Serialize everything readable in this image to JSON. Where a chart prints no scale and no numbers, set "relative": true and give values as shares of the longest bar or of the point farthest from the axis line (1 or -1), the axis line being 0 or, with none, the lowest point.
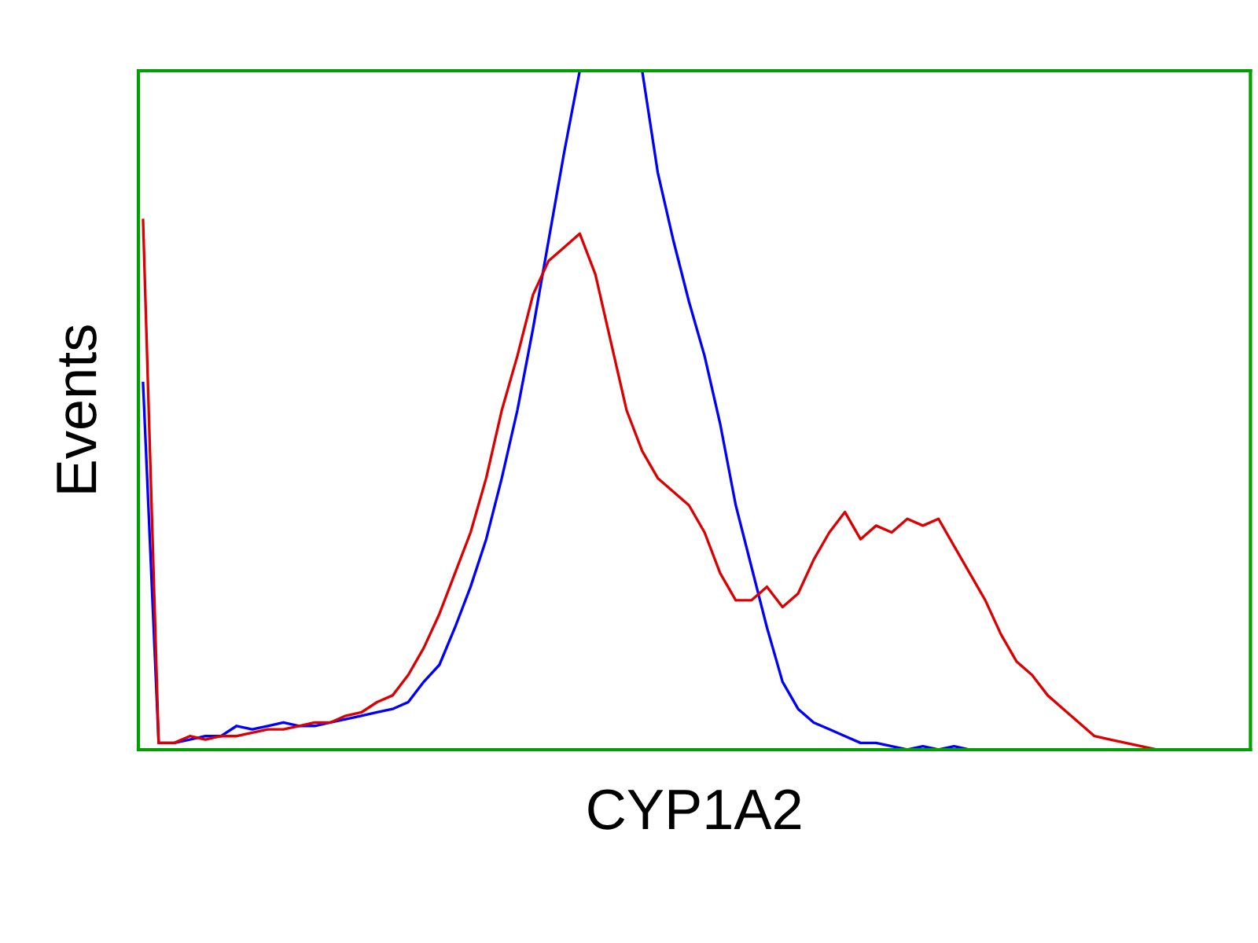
{
  "chart_data": {
    "type": "line",
    "xlabel": "CYP1A2",
    "ylabel": "Events",
    "relative": true,
    "grid": false,
    "legend": false,
    "categories": [
      null,
      null,
      null,
      null,
      null,
      null,
      null,
      null,
      null,
      null,
      null,
      null,
      null,
      null,
      null,
      null,
      null,
      null,
      null,
      null,
      null,
      null,
      null,
      null,
      null,
      null,
      null,
      null,
      null,
      null,
      null,
      null,
      null,
      null,
      null,
      null,
      null,
      null,
      null,
      null,
      null,
      null,
      null,
      null,
      null,
      null,
      null,
      null,
      null,
      null,
      null,
      null,
      null,
      null,
      null,
      null,
      null,
      null,
      null,
      null,
      null,
      null,
      null,
      null,
      null,
      null,
      null,
      null,
      null,
      null,
      null,
      null
    ],
    "series": [
      {
        "color": "#0000ff",
        "values": [
          0.54,
          0.01,
          0.01,
          0.015,
          0.02,
          0.02,
          0.035,
          0.03,
          0.035,
          0.04,
          0.035,
          0.035,
          0.04,
          0.045,
          0.05,
          0.055,
          0.06,
          0.07,
          0.1,
          0.125,
          0.18,
          0.24,
          0.31,
          0.4,
          0.5,
          0.62,
          0.75,
          0.88,
          1.0,
          null,
          null,
          null,
          1.0,
          0.85,
          0.75,
          0.66,
          0.58,
          0.48,
          0.36,
          0.27,
          0.18,
          0.1,
          0.06,
          0.04,
          0.03,
          0.02,
          0.01,
          0.01,
          0.005,
          0.0,
          0.005,
          0.0,
          0.005,
          0.0,
          null,
          null,
          null,
          null,
          null,
          null,
          null,
          null,
          null,
          null,
          null,
          null,
          null,
          null,
          null,
          null,
          null,
          null
        ]
      },
      {
        "color": "#dd0000",
        "values": [
          0.78,
          0.01,
          0.01,
          0.02,
          0.015,
          0.02,
          0.02,
          0.025,
          0.03,
          0.03,
          0.035,
          0.04,
          0.04,
          0.05,
          0.055,
          0.07,
          0.08,
          0.11,
          0.15,
          0.2,
          0.26,
          0.32,
          0.4,
          0.5,
          0.58,
          0.67,
          0.72,
          0.74,
          0.76,
          0.7,
          0.6,
          0.5,
          0.44,
          0.4,
          0.38,
          0.36,
          0.32,
          0.26,
          0.22,
          0.22,
          0.24,
          0.21,
          0.23,
          0.28,
          0.32,
          0.35,
          0.31,
          0.33,
          0.32,
          0.34,
          0.33,
          0.34,
          0.3,
          0.26,
          0.22,
          0.17,
          0.13,
          0.11,
          0.08,
          0.06,
          0.04,
          0.02,
          0.015,
          0.01,
          0.005,
          0.0,
          0.0,
          null,
          null,
          null,
          null,
          null
        ]
      }
    ]
  }
}
